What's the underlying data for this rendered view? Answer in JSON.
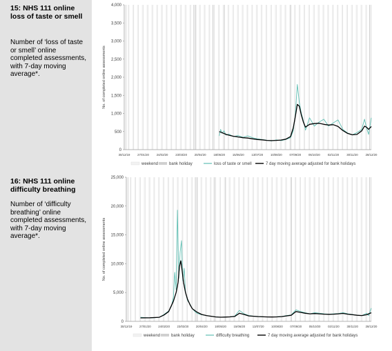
{
  "sections": [
    {
      "title": "15: NHS 111 online loss of taste or smell",
      "description": "Number of ‘loss of taste or smell’ online completed assessments, with 7-day moving average*."
    },
    {
      "title": "16: NHS 111 online difficulty breathing",
      "description": "Number of ‘difficulty breathing’ online completed assessments, with 7-day moving average*."
    }
  ],
  "colors": {
    "sidebar": "#e3e3e3",
    "daily_series": "#5fbfb3",
    "moving_average": "#000000",
    "weekend": "#f2f2f2",
    "bank_holiday": "#d0d0d0",
    "grid": "#d9d9d9"
  },
  "chart_data": [
    {
      "type": "line",
      "ylabel": "No. of completed online assessments",
      "ylim": [
        0,
        4000
      ],
      "yticks": [
        0,
        500,
        1000,
        1500,
        2000,
        2500,
        3000,
        3500,
        4000
      ],
      "ytick_labels": [
        "0",
        "500",
        "1,000",
        "1,500",
        "2,000",
        "2,500",
        "3,000",
        "3,500",
        "4,000"
      ],
      "xlim": [
        "2019-12-30",
        "2020-12-28"
      ],
      "xticks": [
        "30/12/19",
        "27/01/20",
        "24/02/20",
        "23/03/20",
        "20/04/20",
        "18/05/20",
        "15/06/20",
        "13/07/20",
        "10/08/20",
        "07/09/20",
        "05/10/20",
        "02/11/20",
        "30/11/20",
        "28/12/20"
      ],
      "grid": "vertical weekly bands",
      "legend_position": "bottom",
      "legend": [
        "weekend",
        "bank holiday",
        "loss of taste or smell",
        "7 day moving average adjusted for bank holidays"
      ],
      "series": [
        {
          "name": "loss of taste or smell",
          "x": [
            "2020-05-18",
            "2020-05-20",
            "2020-05-22",
            "2020-05-25",
            "2020-05-28",
            "2020-06-01",
            "2020-06-08",
            "2020-06-15",
            "2020-06-22",
            "2020-06-29",
            "2020-07-06",
            "2020-07-13",
            "2020-07-20",
            "2020-07-27",
            "2020-08-03",
            "2020-08-10",
            "2020-08-17",
            "2020-08-24",
            "2020-08-31",
            "2020-09-04",
            "2020-09-07",
            "2020-09-10",
            "2020-09-13",
            "2020-09-16",
            "2020-09-19",
            "2020-09-22",
            "2020-09-25",
            "2020-09-28",
            "2020-10-05",
            "2020-10-12",
            "2020-10-19",
            "2020-10-26",
            "2020-11-02",
            "2020-11-09",
            "2020-11-16",
            "2020-11-23",
            "2020-11-30",
            "2020-12-07",
            "2020-12-14",
            "2020-12-18",
            "2020-12-21",
            "2020-12-24",
            "2020-12-28"
          ],
          "y": [
            380,
            560,
            450,
            520,
            400,
            430,
            360,
            390,
            340,
            380,
            330,
            300,
            280,
            260,
            240,
            270,
            250,
            280,
            330,
            520,
            950,
            1800,
            1300,
            1000,
            800,
            540,
            700,
            880,
            650,
            760,
            840,
            650,
            740,
            820,
            560,
            460,
            410,
            470,
            560,
            840,
            600,
            420,
            880
          ]
        },
        {
          "name": "7 day moving average adjusted for bank holidays",
          "x": [
            "2020-05-18",
            "2020-05-22",
            "2020-05-28",
            "2020-06-01",
            "2020-06-08",
            "2020-06-15",
            "2020-06-22",
            "2020-06-29",
            "2020-07-06",
            "2020-07-13",
            "2020-07-20",
            "2020-07-27",
            "2020-08-03",
            "2020-08-10",
            "2020-08-17",
            "2020-08-24",
            "2020-08-31",
            "2020-09-04",
            "2020-09-07",
            "2020-09-10",
            "2020-09-13",
            "2020-09-16",
            "2020-09-19",
            "2020-09-22",
            "2020-09-28",
            "2020-10-05",
            "2020-10-12",
            "2020-10-19",
            "2020-10-26",
            "2020-11-02",
            "2020-11-09",
            "2020-11-16",
            "2020-11-23",
            "2020-11-30",
            "2020-12-07",
            "2020-12-14",
            "2020-12-18",
            "2020-12-21",
            "2020-12-24",
            "2020-12-28"
          ],
          "y": [
            500,
            470,
            420,
            400,
            370,
            350,
            330,
            320,
            300,
            280,
            270,
            255,
            250,
            255,
            265,
            290,
            360,
            600,
            900,
            1250,
            1200,
            950,
            760,
            620,
            700,
            720,
            730,
            700,
            680,
            690,
            640,
            530,
            450,
            410,
            420,
            520,
            650,
            620,
            560,
            640
          ]
        }
      ]
    },
    {
      "type": "line",
      "ylabel": "No. of completed online assessments",
      "ylim": [
        0,
        25000
      ],
      "yticks": [
        0,
        5000,
        10000,
        15000,
        20000,
        25000
      ],
      "ytick_labels": [
        "0",
        "5,000",
        "10,000",
        "15,000",
        "20,000",
        "25,000"
      ],
      "xlim": [
        "2019-12-30",
        "2020-12-28"
      ],
      "xticks": [
        "30/12/19",
        "27/01/20",
        "24/02/20",
        "23/03/20",
        "20/04/20",
        "18/05/20",
        "15/06/20",
        "13/07/20",
        "10/08/20",
        "07/09/20",
        "05/10/20",
        "02/11/20",
        "30/11/20",
        "28/12/20"
      ],
      "grid": "vertical weekly bands",
      "legend_position": "bottom",
      "legend": [
        "weekend",
        "bank holiday",
        "difficulty breathing",
        "7 day moving average adjusted for bank holidays"
      ],
      "series": [
        {
          "name": "difficulty breathing",
          "x": [
            "2020-01-20",
            "2020-01-27",
            "2020-02-03",
            "2020-02-10",
            "2020-02-17",
            "2020-02-24",
            "2020-03-02",
            "2020-03-06",
            "2020-03-09",
            "2020-03-11",
            "2020-03-13",
            "2020-03-15",
            "2020-03-17",
            "2020-03-19",
            "2020-03-21",
            "2020-03-23",
            "2020-03-25",
            "2020-03-27",
            "2020-03-30",
            "2020-04-03",
            "2020-04-06",
            "2020-04-10",
            "2020-04-13",
            "2020-04-20",
            "2020-04-27",
            "2020-05-04",
            "2020-05-11",
            "2020-05-18",
            "2020-05-25",
            "2020-06-01",
            "2020-06-08",
            "2020-06-15",
            "2020-06-22",
            "2020-06-29",
            "2020-07-06",
            "2020-07-13",
            "2020-07-20",
            "2020-07-27",
            "2020-08-03",
            "2020-08-10",
            "2020-08-17",
            "2020-08-24",
            "2020-08-31",
            "2020-09-07",
            "2020-09-14",
            "2020-09-21",
            "2020-09-28",
            "2020-10-05",
            "2020-10-12",
            "2020-10-19",
            "2020-10-26",
            "2020-11-02",
            "2020-11-09",
            "2020-11-16",
            "2020-11-23",
            "2020-11-30",
            "2020-12-07",
            "2020-12-14",
            "2020-12-21",
            "2020-12-24",
            "2020-12-28"
          ],
          "y": [
            700,
            650,
            600,
            620,
            700,
            1200,
            1800,
            2600,
            4200,
            8500,
            5500,
            19300,
            7500,
            12000,
            14000,
            7000,
            9200,
            5000,
            3600,
            2900,
            2200,
            1700,
            1400,
            1150,
            1000,
            880,
            760,
            700,
            750,
            800,
            900,
            1900,
            1300,
            1000,
            900,
            850,
            800,
            780,
            760,
            800,
            850,
            1000,
            1100,
            2000,
            1700,
            1500,
            1300,
            1500,
            1400,
            1300,
            1250,
            1300,
            1350,
            1500,
            1300,
            1200,
            1050,
            1000,
            1400,
            1000,
            2300
          ]
        },
        {
          "name": "7 day moving average adjusted for bank holidays",
          "x": [
            "2020-01-20",
            "2020-02-03",
            "2020-02-17",
            "2020-02-24",
            "2020-03-02",
            "2020-03-09",
            "2020-03-13",
            "2020-03-16",
            "2020-03-18",
            "2020-03-20",
            "2020-03-22",
            "2020-03-24",
            "2020-03-27",
            "2020-03-30",
            "2020-04-03",
            "2020-04-06",
            "2020-04-13",
            "2020-04-20",
            "2020-04-27",
            "2020-05-04",
            "2020-05-11",
            "2020-05-18",
            "2020-05-25",
            "2020-06-01",
            "2020-06-08",
            "2020-06-15",
            "2020-06-22",
            "2020-06-29",
            "2020-07-06",
            "2020-07-13",
            "2020-07-20",
            "2020-07-27",
            "2020-08-03",
            "2020-08-10",
            "2020-08-17",
            "2020-08-24",
            "2020-08-31",
            "2020-09-07",
            "2020-09-14",
            "2020-09-21",
            "2020-09-28",
            "2020-10-05",
            "2020-10-12",
            "2020-10-19",
            "2020-10-26",
            "2020-11-02",
            "2020-11-09",
            "2020-11-16",
            "2020-11-23",
            "2020-11-30",
            "2020-12-07",
            "2020-12-14",
            "2020-12-21",
            "2020-12-28"
          ],
          "y": [
            600,
            620,
            700,
            1100,
            1700,
            3500,
            5000,
            6800,
            9500,
            10500,
            8800,
            6800,
            5000,
            3800,
            2800,
            2200,
            1600,
            1200,
            1000,
            880,
            770,
            720,
            740,
            780,
            850,
            1400,
            1200,
            950,
            880,
            830,
            790,
            760,
            750,
            780,
            830,
            950,
            1050,
            1700,
            1550,
            1400,
            1300,
            1350,
            1300,
            1250,
            1220,
            1250,
            1300,
            1380,
            1250,
            1150,
            1050,
            1000,
            1150,
            1500
          ]
        }
      ]
    }
  ]
}
